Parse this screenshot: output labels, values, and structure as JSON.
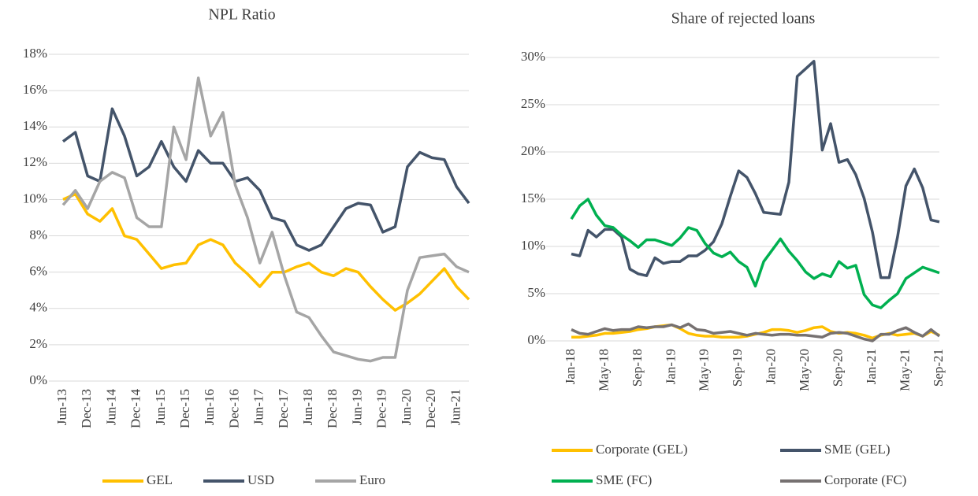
{
  "chart_data": [
    {
      "type": "line",
      "title": "NPL Ratio",
      "categories": [
        "Jun-13",
        null,
        "Dec-13",
        null,
        "Jun-14",
        null,
        "Dec-14",
        null,
        "Jun-15",
        null,
        "Dec-15",
        null,
        "Jun-16",
        null,
        "Dec-16",
        null,
        "Jun-17",
        null,
        "Dec-17",
        null,
        "Jun-18",
        null,
        "Dec-18",
        null,
        "Jun-19",
        null,
        "Dec-19",
        null,
        "Jun-20",
        null,
        "Dec-20",
        null,
        "Jun-21",
        null
      ],
      "series": [
        {
          "name": "GEL",
          "color": "#ffc000",
          "values": [
            10.0,
            10.3,
            9.2,
            8.8,
            9.5,
            8.0,
            7.8,
            7.0,
            6.2,
            6.4,
            6.5,
            7.5,
            7.8,
            7.5,
            6.5,
            5.9,
            5.2,
            6.0,
            6.0,
            6.3,
            6.5,
            6.0,
            5.8,
            6.2,
            6.0,
            5.2,
            4.5,
            3.9,
            4.3,
            4.8,
            5.5,
            6.2,
            5.2,
            4.5
          ]
        },
        {
          "name": "USD",
          "color": "#44546a",
          "values": [
            13.2,
            13.7,
            11.3,
            11.0,
            15.0,
            13.5,
            11.3,
            11.8,
            13.2,
            11.8,
            11.0,
            12.7,
            12.0,
            12.0,
            11.0,
            11.2,
            10.5,
            9.0,
            8.8,
            7.5,
            7.2,
            7.5,
            8.5,
            9.5,
            9.8,
            9.7,
            8.2,
            8.5,
            11.8,
            12.6,
            12.3,
            12.2,
            10.7,
            9.8
          ]
        },
        {
          "name": "Euro",
          "color": "#a5a5a5",
          "values": [
            9.7,
            10.5,
            9.5,
            11.0,
            11.5,
            11.2,
            9.0,
            8.5,
            8.5,
            14.0,
            12.2,
            16.7,
            13.5,
            14.8,
            10.8,
            9.0,
            6.5,
            8.2,
            5.8,
            3.8,
            3.5,
            2.5,
            1.6,
            1.4,
            1.2,
            1.1,
            1.3,
            1.3,
            5.0,
            6.8,
            6.9,
            7.0,
            6.3,
            6.0
          ]
        }
      ],
      "ylim": [
        0,
        18
      ],
      "yticks": [
        {
          "value": 0,
          "label": "0%"
        },
        {
          "value": 2,
          "label": "2%"
        },
        {
          "value": 4,
          "label": "4%"
        },
        {
          "value": 6,
          "label": "6%"
        },
        {
          "value": 8,
          "label": "8%"
        },
        {
          "value": 10,
          "label": "10%"
        },
        {
          "value": 12,
          "label": "12%"
        },
        {
          "value": 14,
          "label": "14%"
        },
        {
          "value": 16,
          "label": "16%"
        },
        {
          "value": 18,
          "label": "18%"
        }
      ],
      "grid": true,
      "legend": "bottom"
    },
    {
      "type": "line",
      "title": "Share of rejected loans",
      "categories": [
        "Jan-18",
        null,
        null,
        null,
        "May-18",
        null,
        null,
        null,
        "Sep-18",
        null,
        null,
        null,
        "Jan-19",
        null,
        null,
        null,
        "May-19",
        null,
        null,
        null,
        "Sep-19",
        null,
        null,
        null,
        "Jan-20",
        null,
        null,
        null,
        "May-20",
        null,
        null,
        null,
        "Sep-20",
        null,
        null,
        null,
        "Jan-21",
        null,
        null,
        null,
        "May-21",
        null,
        null,
        null,
        "Sep-21"
      ],
      "series": [
        {
          "name": "Corporate (GEL)",
          "color": "#ffc000",
          "values": [
            0.4,
            0.4,
            0.5,
            0.6,
            0.8,
            0.8,
            0.9,
            1.0,
            1.2,
            1.3,
            1.5,
            1.6,
            1.7,
            1.3,
            0.8,
            0.6,
            0.5,
            0.5,
            0.4,
            0.4,
            0.4,
            0.5,
            0.7,
            0.9,
            1.2,
            1.2,
            1.1,
            0.9,
            1.1,
            1.4,
            1.5,
            1.0,
            0.8,
            0.9,
            0.8,
            0.6,
            0.3,
            0.6,
            0.8,
            0.6,
            0.7,
            0.8,
            0.5,
            1.0,
            0.6
          ]
        },
        {
          "name": "SME (GEL)",
          "color": "#44546a",
          "values": [
            9.2,
            9.0,
            11.7,
            11.0,
            11.8,
            11.8,
            11.0,
            7.6,
            7.1,
            6.9,
            8.8,
            8.2,
            8.4,
            8.4,
            9.0,
            9.0,
            9.6,
            10.5,
            12.4,
            15.3,
            18.0,
            17.3,
            15.6,
            13.6,
            13.5,
            13.4,
            16.8,
            28.0,
            28.8,
            29.6,
            20.2,
            23.0,
            18.9,
            19.2,
            17.6,
            15.1,
            11.5,
            6.7,
            6.7,
            11.0,
            16.4,
            18.2,
            16.2,
            12.8,
            12.6
          ]
        },
        {
          "name": "SME (FC)",
          "color": "#00b050",
          "values": [
            12.9,
            14.3,
            15.0,
            13.3,
            12.2,
            12.0,
            11.2,
            10.6,
            9.9,
            10.7,
            10.7,
            10.4,
            10.1,
            10.9,
            12.0,
            11.7,
            10.3,
            9.3,
            8.9,
            9.4,
            8.4,
            7.8,
            5.8,
            8.4,
            9.6,
            10.8,
            9.5,
            8.5,
            7.3,
            6.6,
            7.1,
            6.8,
            8.4,
            7.7,
            8.0,
            4.9,
            3.8,
            3.5,
            4.3,
            5.0,
            6.6,
            7.2,
            7.8,
            7.5,
            7.2
          ]
        },
        {
          "name": "Corporate (FC)",
          "color": "#767171",
          "values": [
            1.2,
            0.8,
            0.7,
            1.0,
            1.3,
            1.1,
            1.2,
            1.2,
            1.5,
            1.4,
            1.5,
            1.5,
            1.7,
            1.4,
            1.8,
            1.2,
            1.1,
            0.8,
            0.9,
            1.0,
            0.8,
            0.6,
            0.8,
            0.7,
            0.6,
            0.7,
            0.7,
            0.6,
            0.6,
            0.5,
            0.4,
            0.8,
            0.9,
            0.8,
            0.5,
            0.2,
            0.0,
            0.7,
            0.7,
            1.1,
            1.4,
            0.9,
            0.5,
            1.2,
            0.5
          ]
        }
      ],
      "ylim": [
        0,
        30
      ],
      "yticks": [
        {
          "value": 0,
          "label": "0%"
        },
        {
          "value": 5,
          "label": "5%"
        },
        {
          "value": 10,
          "label": "10%"
        },
        {
          "value": 15,
          "label": "15%"
        },
        {
          "value": 20,
          "label": "20%"
        },
        {
          "value": 25,
          "label": "25%"
        },
        {
          "value": 30,
          "label": "30%"
        }
      ],
      "grid": true,
      "legend": "bottom"
    }
  ]
}
